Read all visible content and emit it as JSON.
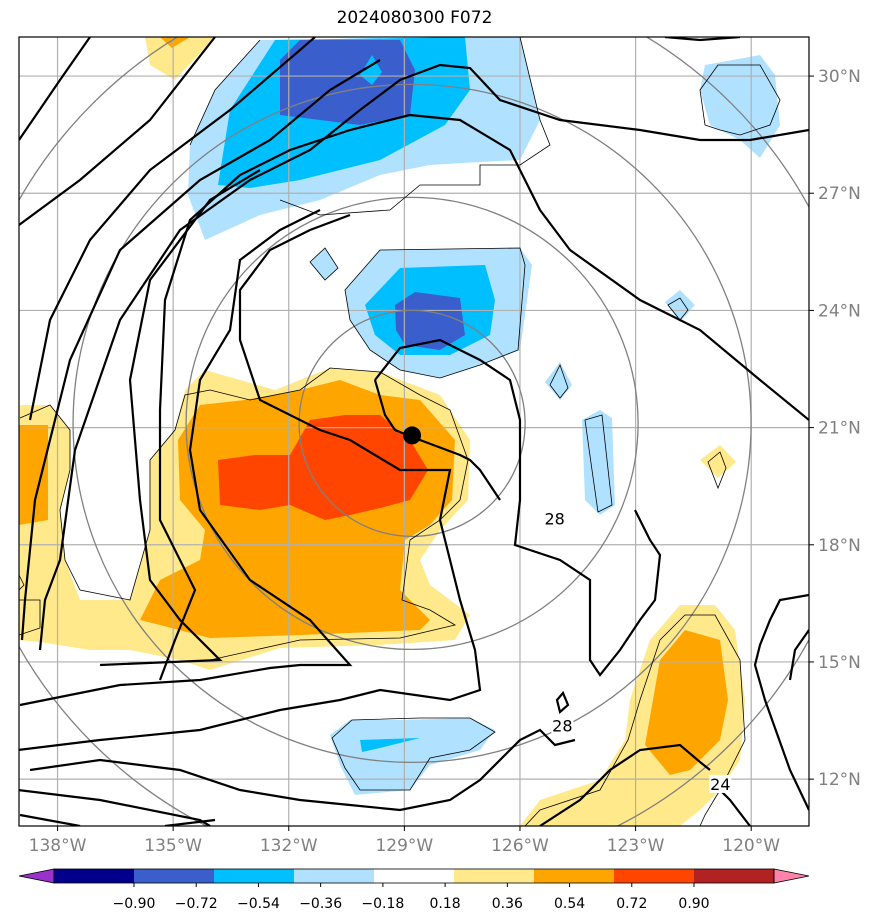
{
  "title": "2024080300 F072",
  "map": {
    "lon_range": [
      -139,
      -118.5
    ],
    "lat_range": [
      10.8,
      31
    ],
    "lon_ticks": [
      {
        "value": -138,
        "label": "138°W"
      },
      {
        "value": -135,
        "label": "135°W"
      },
      {
        "value": -132,
        "label": "132°W"
      },
      {
        "value": -129,
        "label": "129°W"
      },
      {
        "value": -126,
        "label": "126°W"
      },
      {
        "value": -123,
        "label": "123°W"
      },
      {
        "value": -120,
        "label": "120°W"
      }
    ],
    "lat_ticks": [
      {
        "value": 30,
        "label": "30°N"
      },
      {
        "value": 27,
        "label": "27°N"
      },
      {
        "value": 24,
        "label": "24°N"
      },
      {
        "value": 21,
        "label": "21°N"
      },
      {
        "value": 18,
        "label": "18°N"
      },
      {
        "value": 15,
        "label": "15°N"
      },
      {
        "value": 12,
        "label": "12°N"
      }
    ],
    "storm_center": {
      "lon": -128.8,
      "lat": 20.8
    },
    "range_ring_color": "#808080",
    "contour_labels": [
      {
        "text": "28",
        "lon": -125.1,
        "lat": 18.6
      },
      {
        "text": "28",
        "lon": -124.9,
        "lat": 13.3
      },
      {
        "text": "24",
        "lon": -120.8,
        "lat": 11.8
      }
    ]
  },
  "colorbar": {
    "levels": [
      "−0.90",
      "−0.72",
      "−0.54",
      "−0.36",
      "−0.18",
      "0.18",
      "0.36",
      "0.54",
      "0.72",
      "0.90"
    ],
    "colors": [
      "#9932cc",
      "#00008b",
      "#3a5fcd",
      "#00bfff",
      "#b0e2ff",
      "#ffffff",
      "#ffe98a",
      "#ffa500",
      "#ff4500",
      "#b22222",
      "#ff82ab"
    ]
  }
}
